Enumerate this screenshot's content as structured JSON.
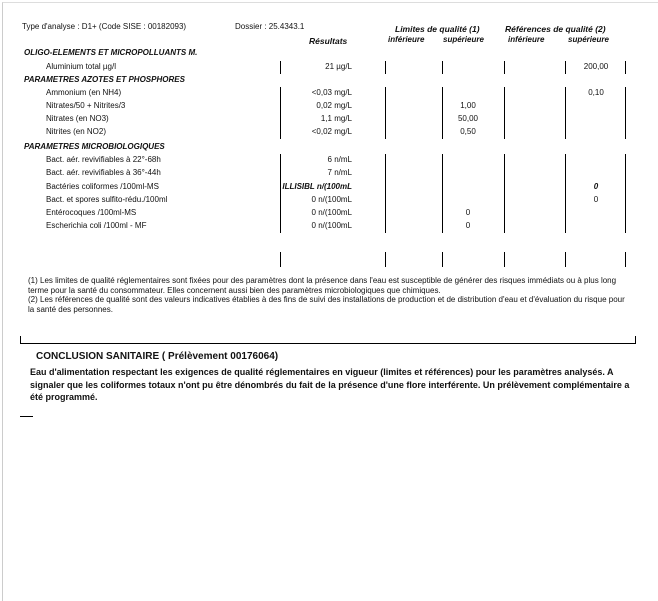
{
  "header": {
    "type_analyse": "Type d'analyse : D1+  (Code SISE : 00182093)",
    "dossier": "Dossier : 25.4343.1",
    "limites": "Limites de qualité (1)",
    "references": "Références de qualité (2)",
    "resultats": "Résultats",
    "inferieure": "inférieure",
    "superieure": "supérieure"
  },
  "groups": [
    {
      "title": "OLIGO-ELEMENTS ET MICROPOLLUANTS M.",
      "rows": [
        {
          "param": "Aluminium total µg/l",
          "result": "21 µg/L",
          "lim_inf": "",
          "lim_sup": "",
          "ref_inf": "",
          "ref_sup": "200,00"
        }
      ]
    },
    {
      "title": "PARAMETRES AZOTES ET PHOSPHORES",
      "rows": [
        {
          "param": "Ammonium (en NH4)",
          "result": "<0,03 mg/L",
          "lim_inf": "",
          "lim_sup": "",
          "ref_inf": "",
          "ref_sup": "0,10"
        },
        {
          "param": "Nitrates/50 + Nitrites/3",
          "result": "0,02 mg/L",
          "lim_inf": "",
          "lim_sup": "1,00",
          "ref_inf": "",
          "ref_sup": ""
        },
        {
          "param": "Nitrates (en NO3)",
          "result": "1,1 mg/L",
          "lim_inf": "",
          "lim_sup": "50,00",
          "ref_inf": "",
          "ref_sup": ""
        },
        {
          "param": "Nitrites (en NO2)",
          "result": "<0,02 mg/L",
          "lim_inf": "",
          "lim_sup": "0,50",
          "ref_inf": "",
          "ref_sup": ""
        }
      ]
    },
    {
      "title": "PARAMETRES MICROBIOLOGIQUES",
      "rows": [
        {
          "param": "Bact. aér. revivifiables à 22°-68h",
          "result": "6 n/mL",
          "lim_inf": "",
          "lim_sup": "",
          "ref_inf": "",
          "ref_sup": ""
        },
        {
          "param": "Bact. aér. revivifiables à 36°-44h",
          "result": "7 n/mL",
          "lim_inf": "",
          "lim_sup": "",
          "ref_inf": "",
          "ref_sup": ""
        },
        {
          "param": "Bactéries coliformes /100ml-MS",
          "result": "ILLISIBL n/(100mL",
          "lim_inf": "",
          "lim_sup": "",
          "ref_inf": "",
          "ref_sup": "0",
          "emph": true
        },
        {
          "param": "Bact. et spores sulfito-rédu./100ml",
          "result": "0 n/(100mL",
          "lim_inf": "",
          "lim_sup": "",
          "ref_inf": "",
          "ref_sup": "0"
        },
        {
          "param": "Entérocoques /100ml-MS",
          "result": "0 n/(100mL",
          "lim_inf": "",
          "lim_sup": "0",
          "ref_inf": "",
          "ref_sup": ""
        },
        {
          "param": "Escherichia coli /100ml - MF",
          "result": "0 n/(100mL",
          "lim_inf": "",
          "lim_sup": "0",
          "ref_inf": "",
          "ref_sup": ""
        }
      ]
    }
  ],
  "footnotes": [
    "(1) Les limites de qualité réglementaires sont fixées pour des paramètres dont la présence dans l'eau est susceptible de générer des risques immédiats ou à plus long terme pour la santé du consommateur. Elles concernent aussi bien des paramètres microbiologiques que chimiques.",
    "(2) Les références de qualité sont des valeurs indicatives établies à des fins de suivi des installations de production et de distribution d'eau et d'évaluation du risque pour la santé des personnes."
  ],
  "conclusion": {
    "title": "CONCLUSION SANITAIRE ( Prélèvement 00176064)",
    "body": "Eau d'alimentation respectant les exigences de qualité réglementaires   en vigueur (limites et références) pour les paramètres analysés. A  signaler que les coliformes totaux n'ont pu être dénombrés du fait de  la présence d'une flore interférente. Un prélèvement complémentaire a  été programmé."
  }
}
